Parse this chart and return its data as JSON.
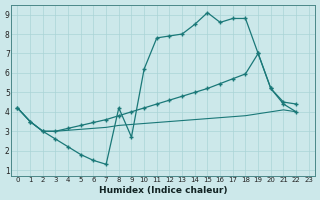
{
  "bg_color": "#cce8ea",
  "grid_color": "#aad4d6",
  "line_color": "#1a7878",
  "xlabel": "Humidex (Indice chaleur)",
  "xlim": [
    -0.5,
    23.5
  ],
  "ylim": [
    0.7,
    9.5
  ],
  "xticks": [
    0,
    1,
    2,
    3,
    4,
    5,
    6,
    7,
    8,
    9,
    10,
    11,
    12,
    13,
    14,
    15,
    16,
    17,
    18,
    19,
    20,
    21,
    22,
    23
  ],
  "yticks": [
    1,
    2,
    3,
    4,
    5,
    6,
    7,
    8,
    9
  ],
  "curve1_x": [
    0,
    1,
    2,
    3,
    4,
    5,
    6,
    7,
    8,
    9,
    10,
    11,
    12,
    13,
    14,
    15,
    16,
    17,
    18,
    19,
    20,
    21,
    22
  ],
  "curve1_y": [
    4.2,
    3.5,
    3.0,
    2.6,
    2.2,
    1.8,
    1.5,
    1.3,
    4.2,
    2.7,
    6.2,
    7.8,
    7.9,
    8.0,
    8.5,
    9.1,
    8.6,
    8.8,
    8.8,
    7.0,
    5.2,
    4.4,
    4.0
  ],
  "curve2_x": [
    0,
    1,
    2,
    3,
    4,
    5,
    6,
    7,
    8,
    9,
    10,
    11,
    12,
    13,
    14,
    15,
    16,
    17,
    18,
    19,
    20,
    21,
    22
  ],
  "curve2_y": [
    4.2,
    3.5,
    3.0,
    3.0,
    3.15,
    3.3,
    3.45,
    3.6,
    3.8,
    4.0,
    4.2,
    4.4,
    4.6,
    4.8,
    5.0,
    5.2,
    5.45,
    5.7,
    5.95,
    7.0,
    5.2,
    4.5,
    4.4
  ],
  "curve3_x": [
    0,
    1,
    2,
    3,
    4,
    5,
    6,
    7,
    8,
    9,
    10,
    11,
    12,
    13,
    14,
    15,
    16,
    17,
    18,
    19,
    20,
    21,
    22
  ],
  "curve3_y": [
    4.2,
    3.5,
    3.0,
    3.0,
    3.05,
    3.1,
    3.15,
    3.2,
    3.3,
    3.35,
    3.4,
    3.45,
    3.5,
    3.55,
    3.6,
    3.65,
    3.7,
    3.75,
    3.8,
    3.9,
    4.0,
    4.1,
    4.0
  ]
}
